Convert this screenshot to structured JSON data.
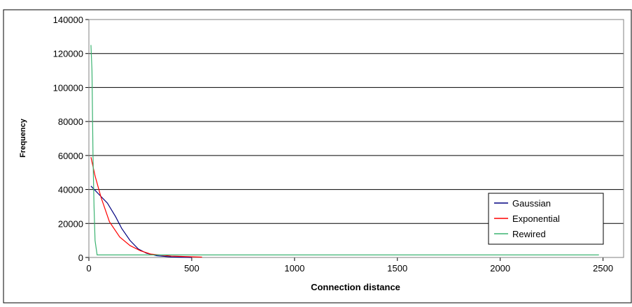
{
  "chart_data": {
    "type": "line",
    "xlabel": "Connection distance",
    "ylabel": "Frequency",
    "xlim": [
      0,
      2600
    ],
    "xticks": [
      0,
      500,
      1000,
      1500,
      2000,
      2500
    ],
    "ylim": [
      0,
      140000
    ],
    "yticks": [
      0,
      20000,
      40000,
      60000,
      80000,
      100000,
      120000,
      140000
    ],
    "grid": true,
    "legend": "right",
    "series": [
      {
        "name": "Gaussian",
        "color": "#000080",
        "x": [
          10,
          50,
          90,
          130,
          160,
          200,
          240,
          280,
          330,
          400,
          500
        ],
        "values": [
          42000,
          37000,
          32000,
          24000,
          17000,
          10000,
          5000,
          2500,
          1000,
          300,
          0
        ]
      },
      {
        "name": "Exponential",
        "color": "#ff0000",
        "x": [
          10,
          30,
          60,
          100,
          150,
          200,
          250,
          300,
          400,
          550
        ],
        "values": [
          59000,
          48000,
          35000,
          21000,
          12000,
          7000,
          4000,
          2000,
          800,
          200
        ]
      },
      {
        "name": "Rewired",
        "color": "#3cb371",
        "x": [
          10,
          15,
          20,
          25,
          30,
          40,
          100,
          500,
          1000,
          1500,
          2000,
          2480
        ],
        "values": [
          125000,
          110000,
          60000,
          30000,
          10000,
          1500,
          1500,
          1500,
          1500,
          1500,
          1500,
          1500
        ]
      }
    ]
  }
}
